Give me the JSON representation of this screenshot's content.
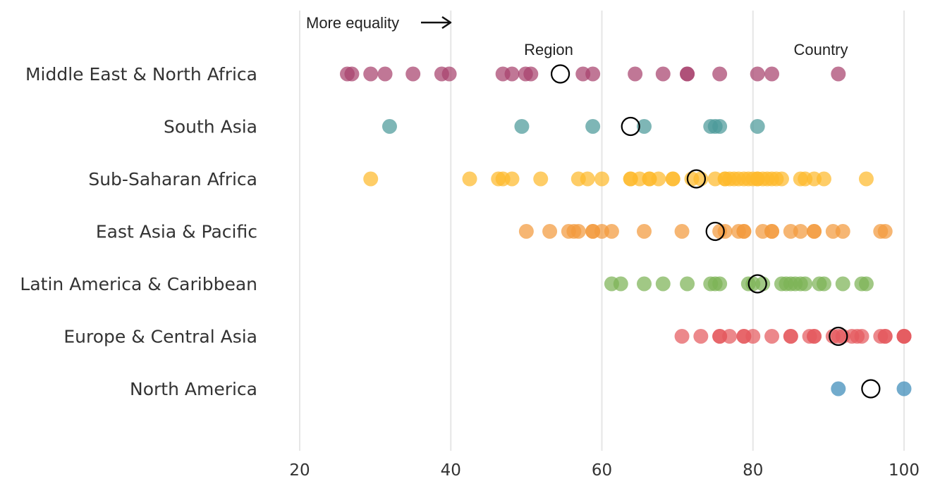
{
  "chart_data": {
    "type": "scatter",
    "title": "",
    "xlabel": "",
    "ylabel": "",
    "xlim": [
      20,
      100
    ],
    "x_ticks": [
      20,
      40,
      60,
      80,
      100
    ],
    "grid": "vertical",
    "annotations": {
      "direction": "More equality",
      "region_label": "Region",
      "country_label": "Country"
    },
    "categories": [
      "Middle East & North Africa",
      "South Asia",
      "Sub-Saharan Africa",
      "East Asia & Pacific",
      "Latin America & Caribbean",
      "Europe & Central Asia",
      "North America"
    ],
    "series": [
      {
        "category": "Middle East & North Africa",
        "color": "#A8426E",
        "region": 54.5,
        "countries": [
          26.3,
          26.9,
          29.4,
          31.3,
          35.0,
          38.8,
          39.8,
          46.9,
          48.1,
          49.9,
          50.6,
          57.5,
          58.8,
          64.4,
          68.1,
          71.3,
          71.3,
          75.6,
          80.6,
          82.5,
          91.3
        ]
      },
      {
        "category": "South Asia",
        "color": "#4C9A9A",
        "region": 63.8,
        "countries": [
          31.9,
          49.4,
          58.8,
          65.6,
          74.4,
          75.0,
          75.6,
          80.6
        ]
      },
      {
        "category": "Sub-Saharan Africa",
        "color": "#FDBA2C",
        "region": 72.5,
        "countries": [
          29.4,
          42.5,
          46.3,
          46.9,
          48.1,
          51.9,
          56.9,
          58.1,
          60.0,
          63.8,
          63.8,
          65.0,
          66.3,
          66.3,
          67.5,
          69.4,
          69.4,
          71.9,
          73.1,
          75.0,
          76.3,
          76.3,
          76.9,
          77.5,
          78.1,
          78.8,
          79.4,
          80.0,
          80.6,
          80.6,
          81.3,
          81.9,
          82.5,
          83.1,
          83.8,
          86.3,
          86.9,
          88.1,
          89.4,
          95.0
        ]
      },
      {
        "category": "East Asia & Pacific",
        "color": "#F29A3D",
        "region": 75.0,
        "countries": [
          50.0,
          53.1,
          55.6,
          56.3,
          56.9,
          58.8,
          58.8,
          60.0,
          61.3,
          65.6,
          70.6,
          75.6,
          76.3,
          78.1,
          78.8,
          78.8,
          81.3,
          82.5,
          82.5,
          85.0,
          86.3,
          88.1,
          88.1,
          90.6,
          91.9,
          96.9,
          97.5
        ]
      },
      {
        "category": "Latin America & Caribbean",
        "color": "#7DB356",
        "region": 80.6,
        "countries": [
          61.3,
          62.5,
          65.6,
          68.1,
          71.3,
          74.4,
          75.0,
          75.6,
          79.4,
          80.0,
          81.3,
          83.8,
          84.4,
          85.0,
          85.6,
          86.3,
          86.9,
          88.8,
          89.4,
          91.9,
          94.4,
          95.0
        ]
      },
      {
        "category": "Europe & Central Asia",
        "color": "#E55A5E",
        "region": 91.3,
        "countries": [
          70.6,
          73.1,
          75.6,
          75.6,
          76.9,
          78.8,
          78.8,
          80.0,
          82.5,
          85.0,
          85.0,
          87.5,
          88.1,
          88.1,
          90.6,
          91.3,
          91.9,
          93.1,
          93.8,
          94.4,
          96.9,
          97.5,
          97.5,
          100.0,
          100.0,
          100.0
        ]
      },
      {
        "category": "North America",
        "color": "#3C8BB8",
        "region": 95.6,
        "countries": [
          91.3,
          100.0
        ]
      }
    ]
  }
}
